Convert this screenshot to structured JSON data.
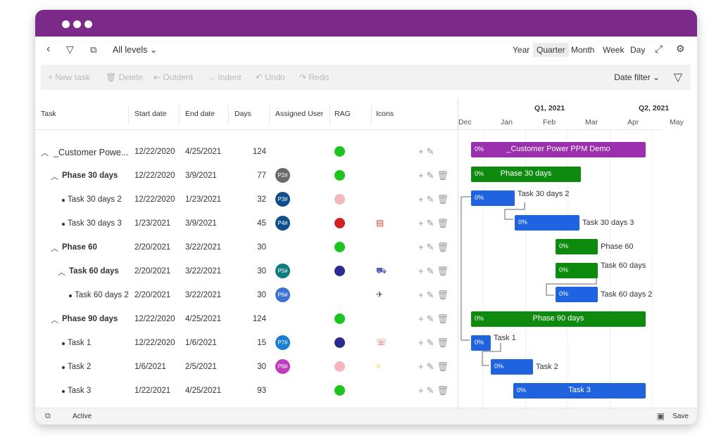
{
  "toolbar_top": {
    "levels_label": "All levels",
    "views": [
      "Year",
      "Quarter",
      "Month",
      "Week",
      "Day"
    ],
    "selected_view": "Quarter"
  },
  "actions": {
    "new_task": "New task",
    "delete": "Delete",
    "outdent": "Outdent",
    "indent": "Indent",
    "undo": "Undo",
    "redo": "Redo",
    "date_filter": "Date filter"
  },
  "columns": {
    "task": "Task",
    "start": "Start date",
    "end": "End date",
    "days": "Days",
    "user": "Assigned User",
    "rag": "RAG",
    "icons": "Icons"
  },
  "rows": [
    {
      "name": "_Customer Powe...",
      "start": "12/22/2020",
      "end": "4/25/2021",
      "days": "124",
      "user": "",
      "user_color": "",
      "rag": "#1ec41e"
    },
    {
      "name": "Phase 30 days",
      "start": "12/22/2020",
      "end": "3/9/2021",
      "days": "77",
      "user": "P2#",
      "user_color": "#6b6b6b",
      "rag": "#1ec41e"
    },
    {
      "name": "Task 30 days 2",
      "start": "12/22/2020",
      "end": "1/23/2021",
      "days": "32",
      "user": "P3#",
      "user_color": "#0f4e8a",
      "rag": "#f2b8be"
    },
    {
      "name": "Task 30 days 3",
      "start": "1/23/2021",
      "end": "3/9/2021",
      "days": "45",
      "user": "P4#",
      "user_color": "#0f4e8a",
      "rag": "#d32020"
    },
    {
      "name": "Phase 60",
      "start": "2/20/2021",
      "end": "3/22/2021",
      "days": "30",
      "user": "",
      "user_color": "",
      "rag": "#1ec41e"
    },
    {
      "name": "Task 60 days",
      "start": "2/20/2021",
      "end": "3/22/2021",
      "days": "30",
      "user": "P5#",
      "user_color": "#0f7b7b",
      "rag": "#2a2a8f"
    },
    {
      "name": "Task 60 days 2",
      "start": "2/20/2021",
      "end": "3/22/2021",
      "days": "30",
      "user": "P6#",
      "user_color": "#3d6fd6",
      "rag": ""
    },
    {
      "name": "Phase 90 days",
      "start": "12/22/2020",
      "end": "4/25/2021",
      "days": "124",
      "user": "",
      "user_color": "",
      "rag": "#1ec41e"
    },
    {
      "name": "Task 1",
      "start": "12/22/2020",
      "end": "1/6/2021",
      "days": "15",
      "user": "P7#",
      "user_color": "#1a7fd0",
      "rag": "#2a2a8f"
    },
    {
      "name": "Task 2",
      "start": "1/6/2021",
      "end": "2/5/2021",
      "days": "30",
      "user": "P8#",
      "user_color": "#c23bbf",
      "rag": "#f2b8be"
    },
    {
      "name": "Task 3",
      "start": "1/22/2021",
      "end": "4/25/2021",
      "days": "93",
      "user": "",
      "user_color": "",
      "rag": "#1ec41e"
    }
  ],
  "gantt": {
    "quarters": [
      "Q1, 2021",
      "Q2, 2021"
    ],
    "months": [
      "Dec",
      "Jan",
      "Feb",
      "Mar",
      "Apr",
      "May"
    ],
    "bars": [
      {
        "pct": "0%",
        "label": "_Customer Power PPM Demo",
        "ext": "",
        "color": "#9b2fae"
      },
      {
        "pct": "0%",
        "label": "Phase 30 days",
        "ext": "",
        "color": "#0e8a0e"
      },
      {
        "pct": "0%",
        "label": "",
        "ext": "Task 30 days 2",
        "color": "#1f63e0"
      },
      {
        "pct": "0%",
        "label": "",
        "ext": "Task 30 days 3",
        "color": "#1f63e0"
      },
      {
        "pct": "0%",
        "label": "",
        "ext": "Phase 60",
        "color": "#0e8a0e"
      },
      {
        "pct": "0%",
        "label": "",
        "ext": "Task 60 days",
        "color": "#0e8a0e"
      },
      {
        "pct": "0%",
        "label": "",
        "ext": "Task 60 days 2",
        "color": "#1f63e0"
      },
      {
        "pct": "0%",
        "label": "Phase 90 days",
        "ext": "",
        "color": "#0e8a0e"
      },
      {
        "pct": "0%",
        "label": "",
        "ext": "Task 1",
        "color": "#1f63e0"
      },
      {
        "pct": "0%",
        "label": "",
        "ext": "Task 2",
        "color": "#1f63e0"
      },
      {
        "pct": "0%",
        "label": "Task 3",
        "ext": "",
        "color": "#1f63e0"
      }
    ]
  },
  "status": {
    "state": "Active",
    "save": "Save"
  }
}
